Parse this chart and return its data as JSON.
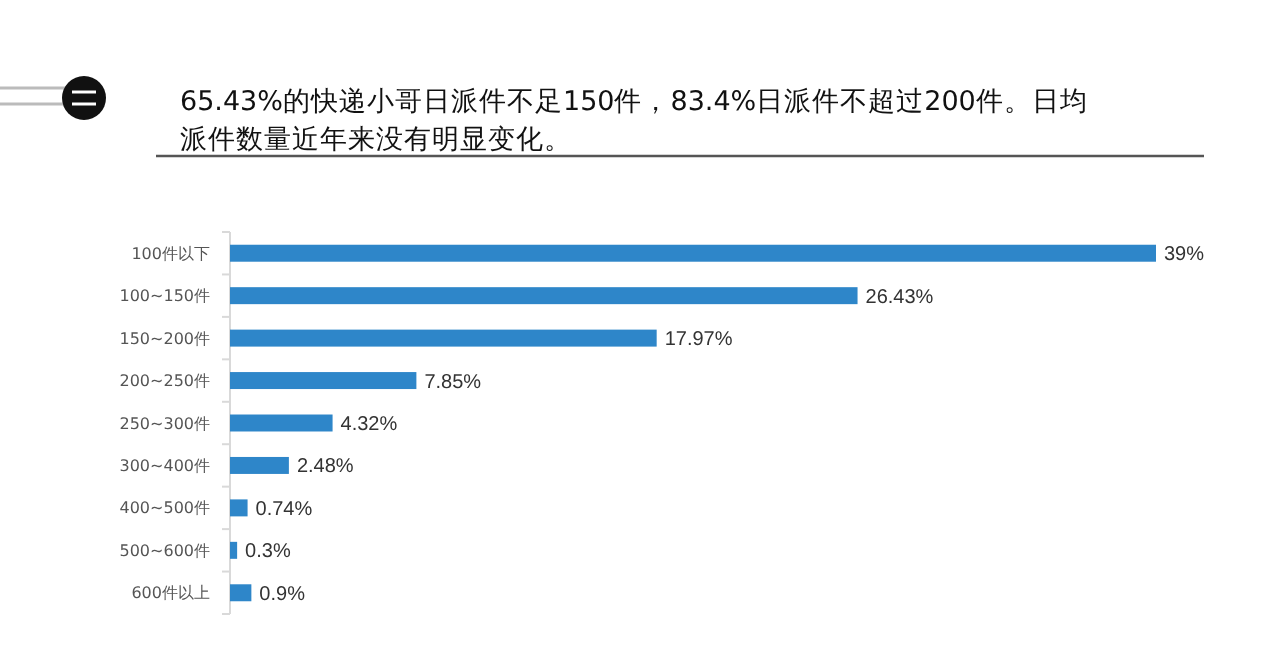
{
  "chart_data": {
    "type": "bar",
    "orientation": "horizontal",
    "title": "65.43%的快递小哥日派件不足150件，83.4%日派件不超过200件。日均派件数量近年来没有明显变化。",
    "categories": [
      "100件以下",
      "100~150件",
      "150~200件",
      "200~250件",
      "250~300件",
      "300~400件",
      "400~500件",
      "500~600件",
      "600件以上"
    ],
    "values": [
      39,
      26.43,
      17.97,
      7.85,
      4.32,
      2.48,
      0.74,
      0.3,
      0.9
    ],
    "value_labels": [
      "39%",
      "26.43%",
      "17.97%",
      "7.85%",
      "4.32%",
      "2.48%",
      "0.74%",
      "0.3%",
      "0.9%"
    ],
    "color": "#2e86c9"
  }
}
